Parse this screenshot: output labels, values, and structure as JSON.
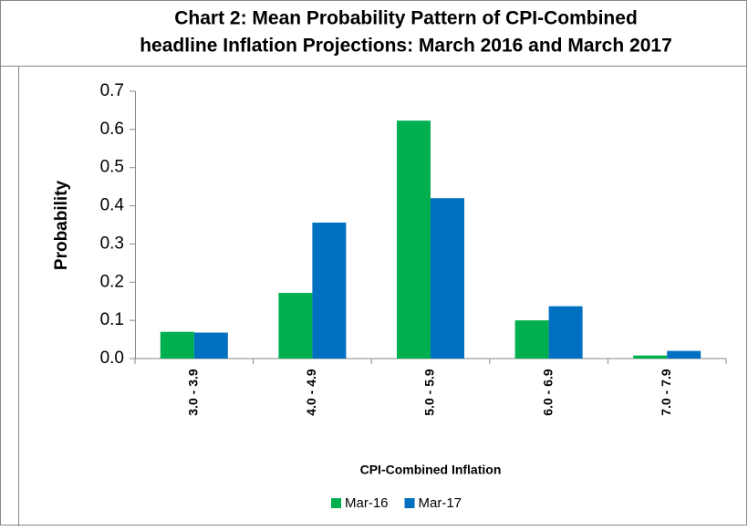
{
  "chart_data": {
    "type": "bar",
    "title": [
      "Chart 2: Mean Probability Pattern of CPI-Combined",
      "headline Inflation Projections: March 2016 and March 2017"
    ],
    "xlabel": "CPI-Combined Inflation",
    "ylabel": "Probability",
    "categories": [
      "3.0 - 3.9",
      "4.0 - 4.9",
      "5.0 - 5.9",
      "6.0 - 6.9",
      "7.0 - 7.9"
    ],
    "series": [
      {
        "name": "Mar-16",
        "color": "#00b050",
        "values": [
          0.07,
          0.172,
          0.623,
          0.1,
          0.008
        ]
      },
      {
        "name": "Mar-17",
        "color": "#0070c0",
        "values": [
          0.068,
          0.356,
          0.42,
          0.137,
          0.02
        ]
      }
    ],
    "ylim": [
      0,
      0.7
    ],
    "yticks": [
      {
        "value": 0,
        "label": "0.0"
      },
      0.1,
      0.2,
      0.3,
      0.4,
      0.5,
      0.6,
      0.7
    ],
    "grid": false,
    "legend": "bottom"
  }
}
